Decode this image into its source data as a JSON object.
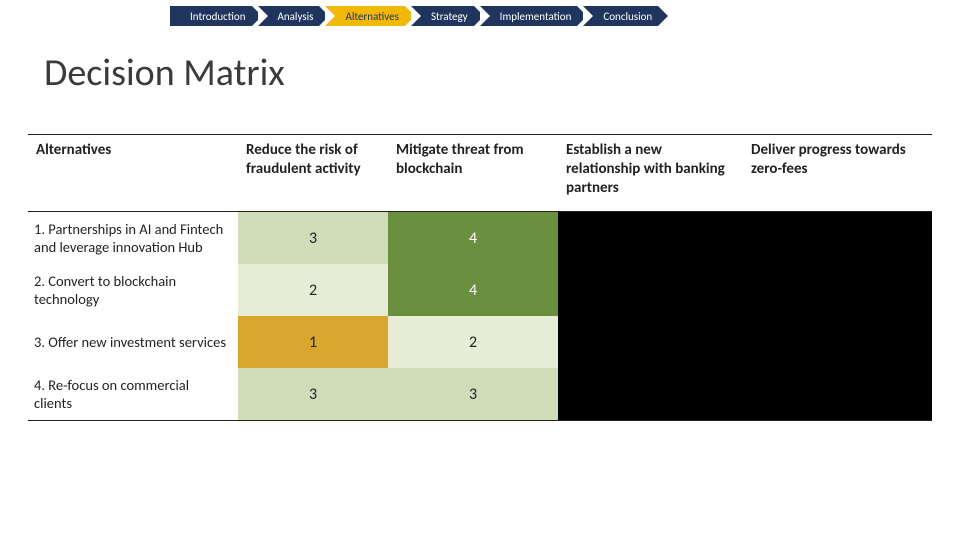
{
  "nav": {
    "items": [
      {
        "label": "Introduction",
        "active": false
      },
      {
        "label": "Analysis",
        "active": false
      },
      {
        "label": "Alternatives",
        "active": true
      },
      {
        "label": "Strategy",
        "active": false
      },
      {
        "label": "Implementation",
        "active": false
      },
      {
        "label": "Conclusion",
        "active": false
      }
    ],
    "colors": {
      "active_bg": "#f2b807",
      "active_fg": "#1f355e",
      "inactive_bg": "#1f355e",
      "inactive_fg": "#ffffff"
    }
  },
  "title": "Decision Matrix",
  "table": {
    "header_cells": [
      "Alternatives",
      "Reduce the risk of fraudulent activity",
      "Mitigate threat from blockchain",
      "Establish a new relationship with banking partners",
      "Deliver progress towards zero-fees"
    ],
    "rows": [
      {
        "label": "1. Partnerships in AI and Fintech and leverage innovation Hub",
        "cells": [
          {
            "value": "3",
            "bg": "#cedcb8"
          },
          {
            "value": "4",
            "bg": "#6a8f3f",
            "fg": "#ffffff"
          }
        ]
      },
      {
        "label": "2. Convert to blockchain technology",
        "cells": [
          {
            "value": "2",
            "bg": "#e6ecd6"
          },
          {
            "value": "4",
            "bg": "#6a8f3f",
            "fg": "#ffffff"
          }
        ]
      },
      {
        "label": "3. Offer new investment services",
        "cells": [
          {
            "value": "1",
            "bg": "#d9a62e"
          },
          {
            "value": "2",
            "bg": "#e6ecd6"
          }
        ]
      },
      {
        "label": "4. Re-focus on commercial clients",
        "cells": [
          {
            "value": "3",
            "bg": "#cedcb8"
          },
          {
            "value": "3",
            "bg": "#cedcb8"
          }
        ]
      }
    ],
    "blackout_color": "#000000",
    "border_color": "#222222"
  }
}
